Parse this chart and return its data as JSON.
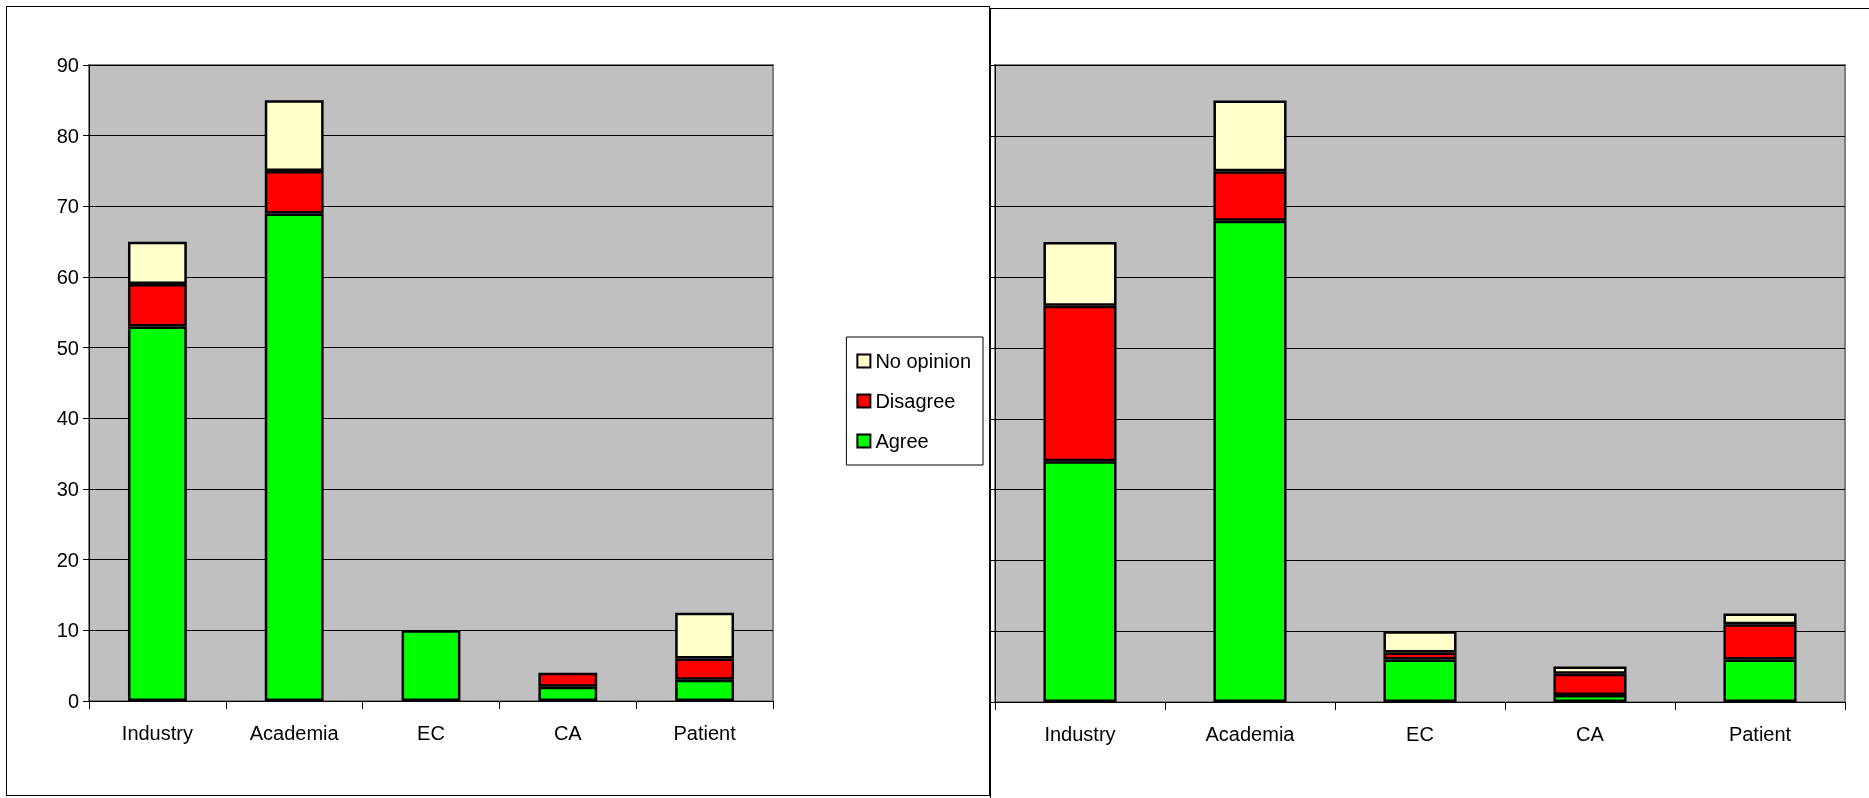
{
  "chart_data": [
    {
      "type": "bar",
      "stacked": true,
      "categories": [
        "Industry",
        "Academia",
        "EC",
        "CA",
        "Patient"
      ],
      "series": [
        {
          "name": "Agree",
          "color": "#00ff00",
          "values": [
            53,
            69,
            10,
            2,
            3
          ]
        },
        {
          "name": "Disagree",
          "color": "#ff0000",
          "values": [
            6,
            6,
            0,
            2,
            3
          ]
        },
        {
          "name": "No opinion",
          "color": "#ffffcc",
          "values": [
            6,
            10,
            0,
            0,
            6.5
          ]
        }
      ],
      "ylim": [
        0,
        90
      ],
      "yticks": [
        0,
        10,
        20,
        30,
        40,
        50,
        60,
        70,
        80,
        90
      ],
      "grid": "y",
      "legend": "right"
    },
    {
      "type": "bar",
      "stacked": true,
      "categories": [
        "Industry",
        "Academia",
        "EC",
        "CA",
        "Patient"
      ],
      "series": [
        {
          "color": "#00ff00",
          "values": [
            34,
            68,
            6,
            1,
            6
          ]
        },
        {
          "color": "#ff0000",
          "values": [
            22,
            7,
            1,
            3,
            5
          ]
        },
        {
          "color": "#ffffcc",
          "values": [
            9,
            10,
            3,
            1,
            1.5
          ]
        }
      ],
      "ylim": [
        0,
        90
      ],
      "yticks": [
        0,
        10,
        20,
        30,
        40,
        50,
        60,
        70,
        80,
        90
      ],
      "grid": "y",
      "tick_labels": "x"
    }
  ]
}
